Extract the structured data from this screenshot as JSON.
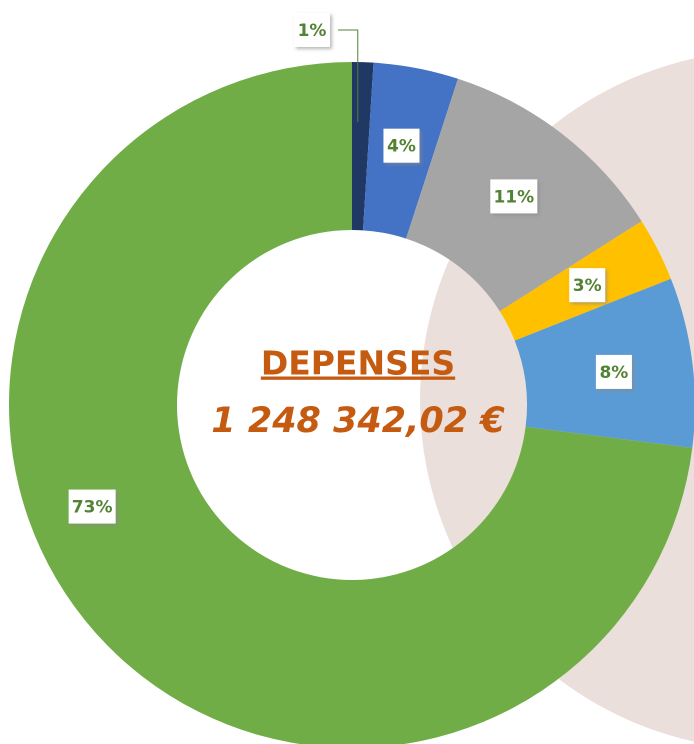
{
  "chart_data": {
    "type": "donut",
    "title": "DEPENSES",
    "subtitle": "1 248 342,02 €",
    "values": [
      1,
      4,
      11,
      3,
      8,
      73
    ],
    "value_labels": [
      "1%",
      "4%",
      "11%",
      "3%",
      "8%",
      "73%"
    ],
    "colors": [
      "#1f3864",
      "#4472c4",
      "#a5a5a5",
      "#ffc000",
      "#5b9bd5",
      "#70ad47"
    ]
  }
}
